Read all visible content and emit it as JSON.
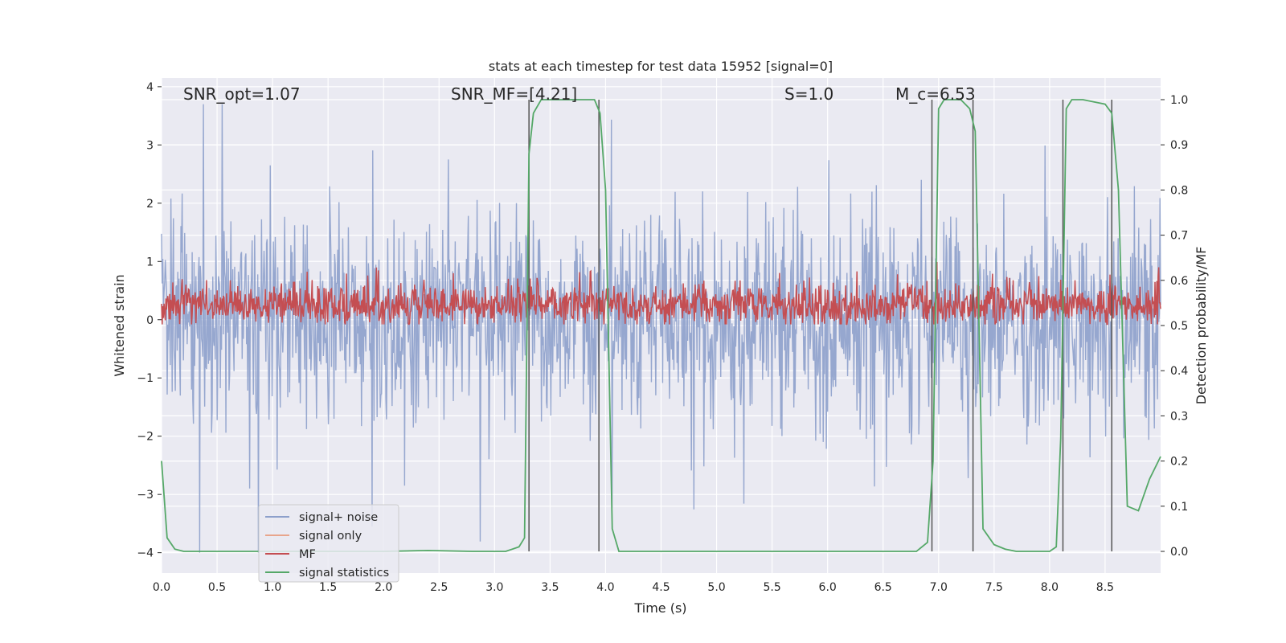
{
  "chart_data": {
    "type": "line",
    "title": "stats at each timestep for test data 15952 [signal=0]",
    "xlabel": "Time (s)",
    "ylabel": "Whitened strain",
    "y2label": "Detection probability/MF",
    "xlim": [
      0,
      9.0
    ],
    "ylim": [
      -4.35,
      4.15
    ],
    "y2lim": [
      -0.048,
      1.048
    ],
    "xticks": [
      "0.0",
      "0.5",
      "1.0",
      "1.5",
      "2.0",
      "2.5",
      "3.0",
      "3.5",
      "4.0",
      "4.5",
      "5.0",
      "5.5",
      "6.0",
      "6.5",
      "7.0",
      "7.5",
      "8.0",
      "8.5"
    ],
    "yticks": [
      "−4",
      "−3",
      "−2",
      "−1",
      "0",
      "1",
      "2",
      "3",
      "4"
    ],
    "y2ticks": [
      "0.0",
      "0.1",
      "0.2",
      "0.3",
      "0.4",
      "0.5",
      "0.6",
      "0.7",
      "0.8",
      "0.9",
      "1.0"
    ],
    "grid": true,
    "legend_position": "lower-left",
    "annotations": [
      {
        "key": "snr_opt",
        "text": "SNR_opt=1.07"
      },
      {
        "key": "snr_mf",
        "text": "SNR_MF=[4.21]"
      },
      {
        "key": "s",
        "text": "S=1.0"
      },
      {
        "key": "mc",
        "text": "M_c=6.53"
      }
    ],
    "series": [
      {
        "name": "signal+ noise",
        "color": "#8da0cb",
        "axis": "left",
        "noise_amplitude": 1.4
      },
      {
        "name": "signal only",
        "color": "#e8a58c",
        "axis": "left",
        "values": []
      },
      {
        "name": "MF",
        "color": "#c44e52",
        "axis": "left",
        "baseline": 0.25
      },
      {
        "name": "signal statistics",
        "color": "#55a868",
        "axis": "right",
        "x": [
          0.0,
          0.05,
          0.12,
          0.2,
          0.5,
          1.0,
          1.5,
          2.0,
          2.4,
          2.8,
          3.1,
          3.22,
          3.27,
          3.31,
          3.35,
          3.42,
          3.6,
          3.9,
          3.95,
          4.0,
          4.06,
          4.12,
          4.2,
          5.0,
          6.0,
          6.8,
          6.9,
          6.95,
          7.0,
          7.05,
          7.2,
          7.28,
          7.33,
          7.4,
          7.5,
          7.6,
          7.7,
          8.0,
          8.06,
          8.1,
          8.15,
          8.2,
          8.3,
          8.5,
          8.56,
          8.62,
          8.7,
          8.8,
          8.9,
          9.0
        ],
        "y": [
          0.2,
          0.03,
          0.005,
          0.0,
          0.0,
          0.0,
          0.0,
          0.0,
          0.002,
          0.0,
          0.0,
          0.01,
          0.03,
          0.88,
          0.97,
          1.0,
          1.0,
          1.0,
          0.97,
          0.8,
          0.05,
          0.0,
          0.0,
          0.0,
          0.0,
          0.0,
          0.02,
          0.2,
          0.98,
          1.0,
          1.0,
          0.98,
          0.93,
          0.05,
          0.015,
          0.005,
          0.0,
          0.0,
          0.01,
          0.25,
          0.98,
          1.0,
          1.0,
          0.99,
          0.97,
          0.8,
          0.1,
          0.09,
          0.16,
          0.21
        ]
      }
    ],
    "vlines": [
      3.31,
      3.94,
      6.94,
      7.31,
      8.12,
      8.56
    ]
  },
  "legend": {
    "items": [
      {
        "label": "signal+ noise",
        "color": "#8da0cb"
      },
      {
        "label": "signal only",
        "color": "#e8a58c"
      },
      {
        "label": "MF",
        "color": "#c44e52"
      },
      {
        "label": "signal statistics",
        "color": "#55a868"
      }
    ]
  }
}
